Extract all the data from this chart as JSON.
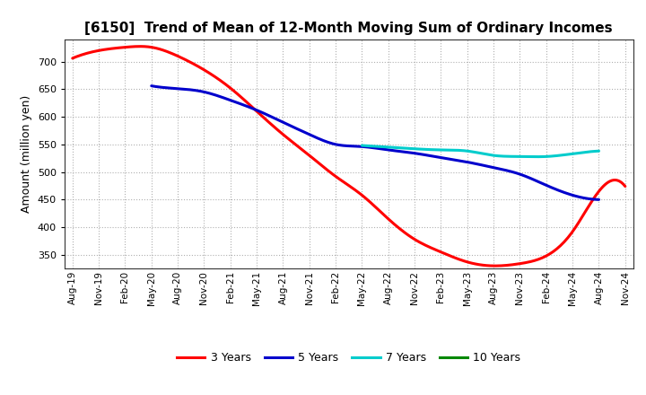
{
  "title": "[6150]  Trend of Mean of 12-Month Moving Sum of Ordinary Incomes",
  "ylabel": "Amount (million yen)",
  "background_color": "#ffffff",
  "plot_bg_color": "#ffffff",
  "grid_color": "#b0b0b0",
  "ylim": [
    325,
    740
  ],
  "yticks": [
    350,
    400,
    450,
    500,
    550,
    600,
    650,
    700
  ],
  "x_labels": [
    "Aug-19",
    "Nov-19",
    "Feb-20",
    "May-20",
    "Aug-20",
    "Nov-20",
    "Feb-21",
    "May-21",
    "Aug-21",
    "Nov-21",
    "Feb-22",
    "May-22",
    "Aug-22",
    "Nov-22",
    "Feb-23",
    "May-23",
    "Aug-23",
    "Nov-23",
    "Feb-24",
    "May-24",
    "Aug-24",
    "Nov-24"
  ],
  "series": {
    "3 Years": {
      "color": "#ff0000",
      "values": [
        706,
        720,
        726,
        726,
        710,
        685,
        652,
        610,
        568,
        530,
        492,
        458,
        415,
        378,
        355,
        337,
        330,
        334,
        348,
        392,
        465,
        474
      ]
    },
    "5 Years": {
      "color": "#0000cc",
      "values": [
        null,
        null,
        null,
        656,
        651,
        645,
        630,
        612,
        590,
        568,
        550,
        546,
        540,
        534,
        526,
        518,
        508,
        496,
        476,
        458,
        450,
        null
      ]
    },
    "7 Years": {
      "color": "#00cccc",
      "values": [
        null,
        null,
        null,
        null,
        null,
        null,
        null,
        null,
        null,
        null,
        null,
        548,
        545,
        542,
        540,
        538,
        530,
        528,
        528,
        533,
        538,
        null
      ]
    },
    "10 Years": {
      "color": "#008800",
      "values": [
        null,
        null,
        null,
        null,
        null,
        null,
        null,
        null,
        null,
        null,
        null,
        null,
        null,
        null,
        null,
        null,
        null,
        null,
        null,
        null,
        null,
        null
      ]
    }
  },
  "legend_order": [
    "3 Years",
    "5 Years",
    "7 Years",
    "10 Years"
  ],
  "legend_colors": [
    "#ff0000",
    "#0000cc",
    "#00cccc",
    "#008800"
  ],
  "title_fontsize": 11,
  "ylabel_fontsize": 9,
  "tick_fontsize": 8,
  "xtick_fontsize": 7.5,
  "linewidth": 2.2
}
